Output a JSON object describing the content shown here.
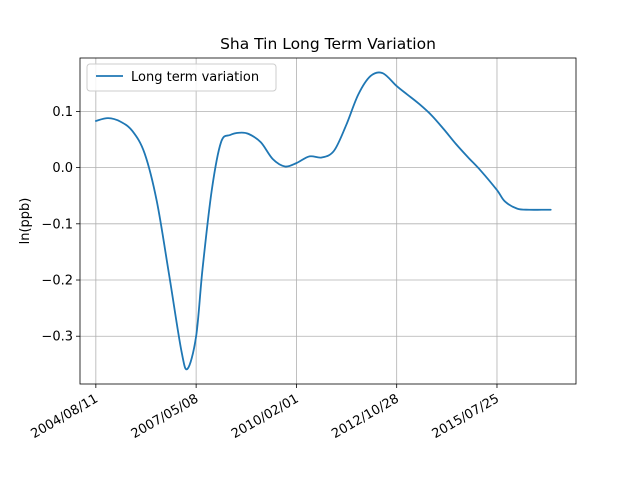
{
  "chart_data": {
    "type": "line",
    "title": "Sha Tin Long Term Variation",
    "xlabel": "",
    "ylabel": "ln(ppb)",
    "x_tick_labels": [
      "2004/08/11",
      "2007/05/08",
      "2010/02/01",
      "2012/10/28",
      "2015/07/25"
    ],
    "x_ticks": [
      "2004-08-11",
      "2007-05-08",
      "2010-02-01",
      "2012-10-28",
      "2015-07-25"
    ],
    "y_ticks": [
      0.1,
      0.0,
      -0.1,
      -0.2,
      -0.3
    ],
    "y_tick_labels": [
      "0.1",
      "0.0",
      "−0.1",
      "−0.2",
      "−0.3"
    ],
    "xlim": [
      "2004-03-06",
      "2017-09-20"
    ],
    "ylim": [
      -0.385,
      0.195
    ],
    "grid": true,
    "legend_position": "top-left",
    "colors": {
      "series": "#1f77b4",
      "grid": "#b0b0b0",
      "axes": "#000000"
    },
    "series": [
      {
        "name": "Long term variation",
        "x": [
          "2004-08-11",
          "2004-12-11",
          "2005-04-11",
          "2005-08-11",
          "2005-12-11",
          "2006-04-11",
          "2006-08-11",
          "2006-12-11",
          "2007-02-11",
          "2007-05-08",
          "2007-07-11",
          "2007-10-11",
          "2008-01-11",
          "2008-04-11",
          "2008-07-11",
          "2008-10-11",
          "2009-02-11",
          "2009-06-11",
          "2009-10-11",
          "2010-02-01",
          "2010-06-11",
          "2010-10-11",
          "2011-02-11",
          "2011-06-11",
          "2011-10-11",
          "2012-02-11",
          "2012-06-11",
          "2012-10-28",
          "2013-02-11",
          "2013-06-11",
          "2013-10-11",
          "2014-02-11",
          "2014-06-11",
          "2014-10-11",
          "2015-02-11",
          "2015-07-25",
          "2015-10-11",
          "2016-02-11",
          "2016-06-11",
          "2016-10-11",
          "2017-01-11"
        ],
        "values": [
          0.083,
          0.088,
          0.082,
          0.065,
          0.025,
          -0.06,
          -0.19,
          -0.325,
          -0.358,
          -0.3,
          -0.18,
          -0.04,
          0.045,
          0.058,
          0.062,
          0.06,
          0.045,
          0.015,
          0.002,
          0.008,
          0.02,
          0.018,
          0.03,
          0.075,
          0.13,
          0.163,
          0.168,
          0.145,
          0.13,
          0.113,
          0.093,
          0.068,
          0.042,
          0.018,
          -0.005,
          -0.04,
          -0.06,
          -0.073,
          -0.075,
          -0.075,
          -0.075
        ]
      }
    ]
  }
}
